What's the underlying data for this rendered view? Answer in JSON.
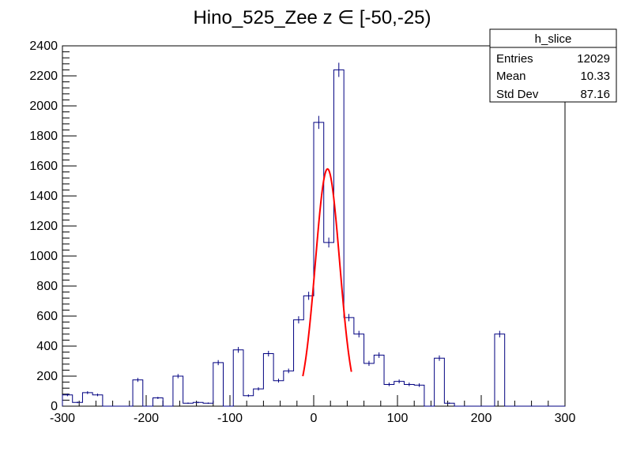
{
  "chart_data": {
    "type": "histogram",
    "title": "Hino_525_Zee z  ∈ [-50,-25)",
    "xlabel": "",
    "ylabel": "",
    "xlim": [
      -300,
      300
    ],
    "ylim": [
      0,
      2400
    ],
    "x_ticks": [
      -300,
      -200,
      -100,
      0,
      100,
      200,
      300
    ],
    "y_ticks": [
      0,
      200,
      400,
      600,
      800,
      1000,
      1200,
      1400,
      1600,
      1800,
      2000,
      2200,
      2400
    ],
    "bin_width": 12,
    "bins": [
      {
        "x0": -300,
        "x1": -288,
        "count": 75
      },
      {
        "x0": -288,
        "x1": -276,
        "count": 25
      },
      {
        "x0": -276,
        "x1": -264,
        "count": 90
      },
      {
        "x0": -264,
        "x1": -252,
        "count": 75
      },
      {
        "x0": -252,
        "x1": -240,
        "count": 0
      },
      {
        "x0": -240,
        "x1": -228,
        "count": 0
      },
      {
        "x0": -228,
        "x1": -216,
        "count": 0
      },
      {
        "x0": -216,
        "x1": -204,
        "count": 175
      },
      {
        "x0": -204,
        "x1": -192,
        "count": 0
      },
      {
        "x0": -192,
        "x1": -180,
        "count": 55
      },
      {
        "x0": -180,
        "x1": -168,
        "count": 0
      },
      {
        "x0": -168,
        "x1": -156,
        "count": 200
      },
      {
        "x0": -156,
        "x1": -144,
        "count": 20
      },
      {
        "x0": -144,
        "x1": -132,
        "count": 25
      },
      {
        "x0": -132,
        "x1": -120,
        "count": 20
      },
      {
        "x0": -120,
        "x1": -108,
        "count": 290
      },
      {
        "x0": -108,
        "x1": -96,
        "count": 0
      },
      {
        "x0": -96,
        "x1": -84,
        "count": 375
      },
      {
        "x0": -84,
        "x1": -72,
        "count": 70
      },
      {
        "x0": -72,
        "x1": -60,
        "count": 115
      },
      {
        "x0": -60,
        "x1": -48,
        "count": 350
      },
      {
        "x0": -48,
        "x1": -36,
        "count": 170
      },
      {
        "x0": -36,
        "x1": -24,
        "count": 235
      },
      {
        "x0": -24,
        "x1": -12,
        "count": 575
      },
      {
        "x0": -12,
        "x1": 0,
        "count": 735
      },
      {
        "x0": 0,
        "x1": 12,
        "count": 1890
      },
      {
        "x0": 12,
        "x1": 24,
        "count": 1090
      },
      {
        "x0": 24,
        "x1": 36,
        "count": 2240
      },
      {
        "x0": 36,
        "x1": 48,
        "count": 590
      },
      {
        "x0": 48,
        "x1": 60,
        "count": 480
      },
      {
        "x0": 60,
        "x1": 72,
        "count": 285
      },
      {
        "x0": 72,
        "x1": 84,
        "count": 340
      },
      {
        "x0": 84,
        "x1": 96,
        "count": 145
      },
      {
        "x0": 96,
        "x1": 108,
        "count": 165
      },
      {
        "x0": 108,
        "x1": 120,
        "count": 145
      },
      {
        "x0": 120,
        "x1": 132,
        "count": 140
      },
      {
        "x0": 132,
        "x1": 144,
        "count": 0
      },
      {
        "x0": 144,
        "x1": 156,
        "count": 320
      },
      {
        "x0": 156,
        "x1": 168,
        "count": 20
      },
      {
        "x0": 168,
        "x1": 180,
        "count": 0
      },
      {
        "x0": 180,
        "x1": 192,
        "count": 0
      },
      {
        "x0": 192,
        "x1": 204,
        "count": 0
      },
      {
        "x0": 204,
        "x1": 216,
        "count": 0
      },
      {
        "x0": 216,
        "x1": 228,
        "count": 480
      },
      {
        "x0": 228,
        "x1": 240,
        "count": 0
      }
    ],
    "fit": {
      "type": "gaussian",
      "amplitude": 1580,
      "mean": 16.5,
      "sigma": 14.5,
      "range": [
        -13,
        45
      ]
    },
    "stats_box": {
      "title": "h_slice",
      "rows": [
        {
          "label": "Entries",
          "value": "12029"
        },
        {
          "label": "Mean",
          "value": "10.33"
        },
        {
          "label": "Std Dev",
          "value": "87.16"
        }
      ]
    },
    "colors": {
      "histogram": "#000080",
      "fit": "#ff0000",
      "axes": "#000000"
    }
  }
}
